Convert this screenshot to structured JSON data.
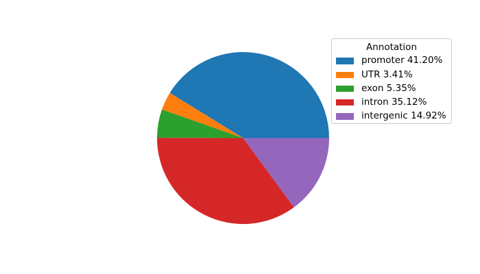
{
  "chart_data": {
    "type": "pie",
    "title": "",
    "legend_title": "Annotation",
    "legend_position": "upper right",
    "start_angle_deg": 0,
    "direction": "counterclockwise",
    "unit": "%",
    "categories": [
      "promoter",
      "UTR",
      "exon",
      "intron",
      "intergenic"
    ],
    "values": [
      41.2,
      3.41,
      5.35,
      35.12,
      14.92
    ],
    "slices": [
      {
        "label": "promoter",
        "value": 41.2,
        "display": "promoter 41.20%",
        "color": "#1f77b4"
      },
      {
        "label": "UTR",
        "value": 3.41,
        "display": "UTR 3.41%",
        "color": "#ff7f0e"
      },
      {
        "label": "exon",
        "value": 5.35,
        "display": "exon 5.35%",
        "color": "#2ca02c"
      },
      {
        "label": "intron",
        "value": 35.12,
        "display": "intron 35.12%",
        "color": "#d62728"
      },
      {
        "label": "intergenic",
        "value": 14.92,
        "display": "intergenic 14.92%",
        "color": "#9467bd"
      }
    ],
    "background_color": "#ffffff",
    "legend_border_color": "#cbcbcb"
  }
}
